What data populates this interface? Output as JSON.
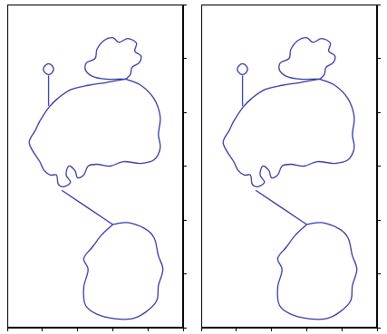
{
  "chart_data": [
    {
      "type": "line",
      "xlim": [
        0,
        200
      ],
      "ylim": [
        0,
        360
      ],
      "xticks": [
        0,
        40,
        80,
        120,
        160,
        200
      ],
      "yticks": [
        0,
        60,
        120,
        180,
        240,
        300,
        360
      ],
      "grid": false,
      "tick_labels": false,
      "color": "#3a3aa8",
      "series": [
        {
          "x": [
            53,
            51,
            47,
            43,
            41,
            43,
            47,
            51,
            53
          ],
          "values": [
            288,
            292,
            294,
            292,
            288,
            284,
            282,
            284,
            288
          ]
        },
        {
          "x": [
            47,
            47
          ],
          "values": [
            281,
            247
          ]
        },
        {
          "x": [
            135,
            112,
            97,
            89,
            90,
            100,
            102,
            110,
            120,
            127,
            137,
            147,
            145,
            152,
            150,
            142,
            140,
            135
          ],
          "values": [
            277,
            277,
            280,
            287,
            295,
            300,
            310,
            320,
            323,
            318,
            322,
            317,
            308,
            303,
            295,
            290,
            282,
            277
          ]
        },
        {
          "x": [
            135,
            152,
            167,
            174,
            172,
            174,
            167,
            152,
            132,
            117,
            102,
            92,
            87,
            80,
            77,
            70,
            67,
            72,
            64,
            58,
            56,
            49,
            42,
            37,
            29,
            25,
            32,
            37,
            47,
            57,
            72,
            92,
            112,
            135
          ],
          "values": [
            277,
            270,
            255,
            235,
            215,
            200,
            187,
            183,
            185,
            180,
            182,
            180,
            170,
            167,
            175,
            180,
            170,
            162,
            157,
            160,
            170,
            170,
            175,
            185,
            197,
            207,
            220,
            230,
            245,
            255,
            265,
            270,
            273,
            277
          ]
        },
        {
          "x": [
            62,
            120
          ],
          "values": [
            153,
            115
          ]
        },
        {
          "x": [
            120,
            137,
            157,
            167,
            172,
            177,
            172,
            170,
            157,
            142,
            122,
            102,
            89,
            87,
            92,
            87,
            97,
            107,
            120
          ],
          "values": [
            115,
            117,
            110,
            100,
            80,
            65,
            47,
            30,
            17,
            10,
            10,
            15,
            25,
            45,
            65,
            77,
            90,
            103,
            115
          ]
        }
      ]
    },
    {
      "type": "line",
      "xlim": [
        0,
        200
      ],
      "ylim": [
        0,
        360
      ],
      "xticks": [
        0,
        40,
        80,
        120,
        160,
        200
      ],
      "yticks": [
        0,
        60,
        120,
        180,
        240,
        300,
        360
      ],
      "grid": false,
      "tick_labels": false,
      "color": "#3a3aa8",
      "series": [
        {
          "x": [
            53,
            51,
            47,
            43,
            41,
            43,
            47,
            51,
            53
          ],
          "values": [
            288,
            292,
            294,
            292,
            288,
            284,
            282,
            284,
            288
          ]
        },
        {
          "x": [
            47,
            47
          ],
          "values": [
            281,
            247
          ]
        },
        {
          "x": [
            135,
            112,
            97,
            89,
            90,
            100,
            102,
            110,
            120,
            127,
            137,
            147,
            145,
            152,
            150,
            142,
            140,
            135
          ],
          "values": [
            277,
            277,
            280,
            287,
            295,
            300,
            310,
            320,
            323,
            318,
            322,
            317,
            308,
            303,
            295,
            290,
            282,
            277
          ]
        },
        {
          "x": [
            135,
            152,
            167,
            174,
            172,
            174,
            167,
            152,
            132,
            117,
            102,
            92,
            87,
            80,
            77,
            70,
            67,
            72,
            64,
            58,
            56,
            49,
            42,
            37,
            29,
            25,
            32,
            37,
            47,
            57,
            72,
            92,
            112,
            135
          ],
          "values": [
            277,
            270,
            255,
            235,
            215,
            200,
            187,
            183,
            185,
            180,
            182,
            180,
            170,
            167,
            175,
            180,
            170,
            162,
            157,
            160,
            170,
            170,
            175,
            185,
            197,
            207,
            220,
            230,
            245,
            255,
            265,
            270,
            273,
            277
          ]
        },
        {
          "x": [
            62,
            120
          ],
          "values": [
            153,
            115
          ]
        },
        {
          "x": [
            120,
            137,
            157,
            167,
            172,
            177,
            172,
            170,
            157,
            142,
            122,
            102,
            89,
            87,
            92,
            87,
            97,
            107,
            120
          ],
          "values": [
            115,
            117,
            110,
            100,
            80,
            65,
            47,
            30,
            17,
            10,
            10,
            15,
            25,
            45,
            65,
            77,
            90,
            103,
            115
          ]
        }
      ]
    }
  ]
}
